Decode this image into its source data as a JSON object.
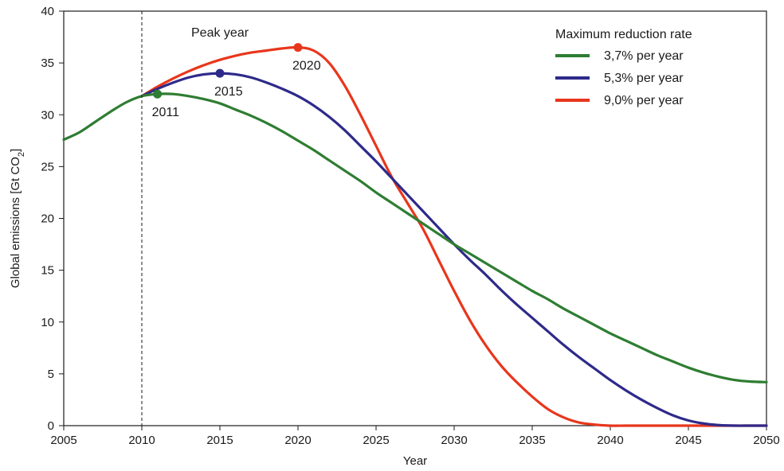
{
  "chart_data": {
    "type": "line",
    "title": "",
    "xlabel": "Year",
    "ylabel": "Global emissions [Gt CO",
    "ylabel_sub": "2",
    "ylabel_end": "]",
    "xlim": [
      2005,
      2050
    ],
    "ylim": [
      0,
      40
    ],
    "xticks": [
      2005,
      2010,
      2015,
      2020,
      2025,
      2030,
      2035,
      2040,
      2045,
      2050
    ],
    "yticks": [
      0,
      5,
      10,
      15,
      20,
      25,
      30,
      35,
      40
    ],
    "grid": false,
    "legend": {
      "title": "Maximum reduction rate",
      "placement": "top-right"
    },
    "vline": {
      "x": 2010,
      "style": "dashed"
    },
    "peak_label": "Peak year",
    "series": [
      {
        "name": "3,7% per year",
        "color": "#2e7d32",
        "peak": {
          "x": 2011,
          "y": 32.0,
          "label": "2011"
        },
        "x": [
          2005,
          2006,
          2007,
          2008,
          2009,
          2010,
          2011,
          2012,
          2013,
          2014,
          2015,
          2016,
          2017,
          2018,
          2019,
          2020,
          2021,
          2022,
          2023,
          2024,
          2025,
          2026,
          2027,
          2028,
          2029,
          2030,
          2031,
          2032,
          2033,
          2034,
          2035,
          2036,
          2037,
          2038,
          2039,
          2040,
          2041,
          2042,
          2043,
          2044,
          2045,
          2046,
          2047,
          2048,
          2049,
          2050
        ],
        "y": [
          27.6,
          28.3,
          29.3,
          30.3,
          31.2,
          31.8,
          32.0,
          32.0,
          31.8,
          31.5,
          31.1,
          30.5,
          29.9,
          29.2,
          28.4,
          27.5,
          26.6,
          25.6,
          24.6,
          23.6,
          22.5,
          21.5,
          20.5,
          19.5,
          18.5,
          17.5,
          16.6,
          15.7,
          14.8,
          13.9,
          13.0,
          12.2,
          11.3,
          10.5,
          9.7,
          8.9,
          8.2,
          7.5,
          6.8,
          6.2,
          5.6,
          5.1,
          4.7,
          4.4,
          4.25,
          4.2
        ]
      },
      {
        "name": "5,3% per year",
        "color": "#2e2a8a",
        "peak": {
          "x": 2015,
          "y": 34.0,
          "label": "2015"
        },
        "x": [
          2010,
          2011,
          2012,
          2013,
          2014,
          2015,
          2016,
          2017,
          2018,
          2019,
          2020,
          2021,
          2022,
          2023,
          2024,
          2025,
          2026,
          2027,
          2028,
          2029,
          2030,
          2031,
          2032,
          2033,
          2034,
          2035,
          2036,
          2037,
          2038,
          2039,
          2040,
          2041,
          2042,
          2043,
          2044,
          2045,
          2046,
          2047,
          2048,
          2049,
          2050
        ],
        "y": [
          31.8,
          32.5,
          33.1,
          33.6,
          33.9,
          34.0,
          33.9,
          33.6,
          33.1,
          32.5,
          31.8,
          30.9,
          29.8,
          28.5,
          27.0,
          25.5,
          23.9,
          22.3,
          20.7,
          19.1,
          17.5,
          16.0,
          14.6,
          13.1,
          11.7,
          10.4,
          9.1,
          7.8,
          6.6,
          5.5,
          4.4,
          3.4,
          2.5,
          1.7,
          1.0,
          0.5,
          0.2,
          0.05,
          0.0,
          0.0,
          0.0
        ]
      },
      {
        "name": "9,0% per year",
        "color": "#e8361c",
        "peak": {
          "x": 2020,
          "y": 36.5,
          "label": "2020"
        },
        "x": [
          2010,
          2011,
          2012,
          2013,
          2014,
          2015,
          2016,
          2017,
          2018,
          2019,
          2020,
          2021,
          2022,
          2023,
          2024,
          2025,
          2026,
          2027,
          2028,
          2029,
          2030,
          2031,
          2032,
          2033,
          2034,
          2035,
          2036,
          2037,
          2038,
          2039,
          2040,
          2041,
          2042,
          2043,
          2044,
          2045,
          2046,
          2047,
          2048,
          2049,
          2050
        ],
        "y": [
          31.8,
          32.7,
          33.5,
          34.2,
          34.8,
          35.3,
          35.7,
          36.0,
          36.2,
          36.4,
          36.5,
          36.2,
          35.0,
          32.8,
          30.0,
          27.0,
          24.0,
          21.5,
          19.0,
          16.0,
          13.0,
          10.2,
          7.8,
          5.8,
          4.2,
          2.8,
          1.6,
          0.8,
          0.3,
          0.1,
          0.0,
          0.0,
          0.0,
          0.0,
          0.0,
          0.0,
          0.0,
          0.0,
          0.0,
          0.0,
          0.0
        ]
      }
    ]
  }
}
